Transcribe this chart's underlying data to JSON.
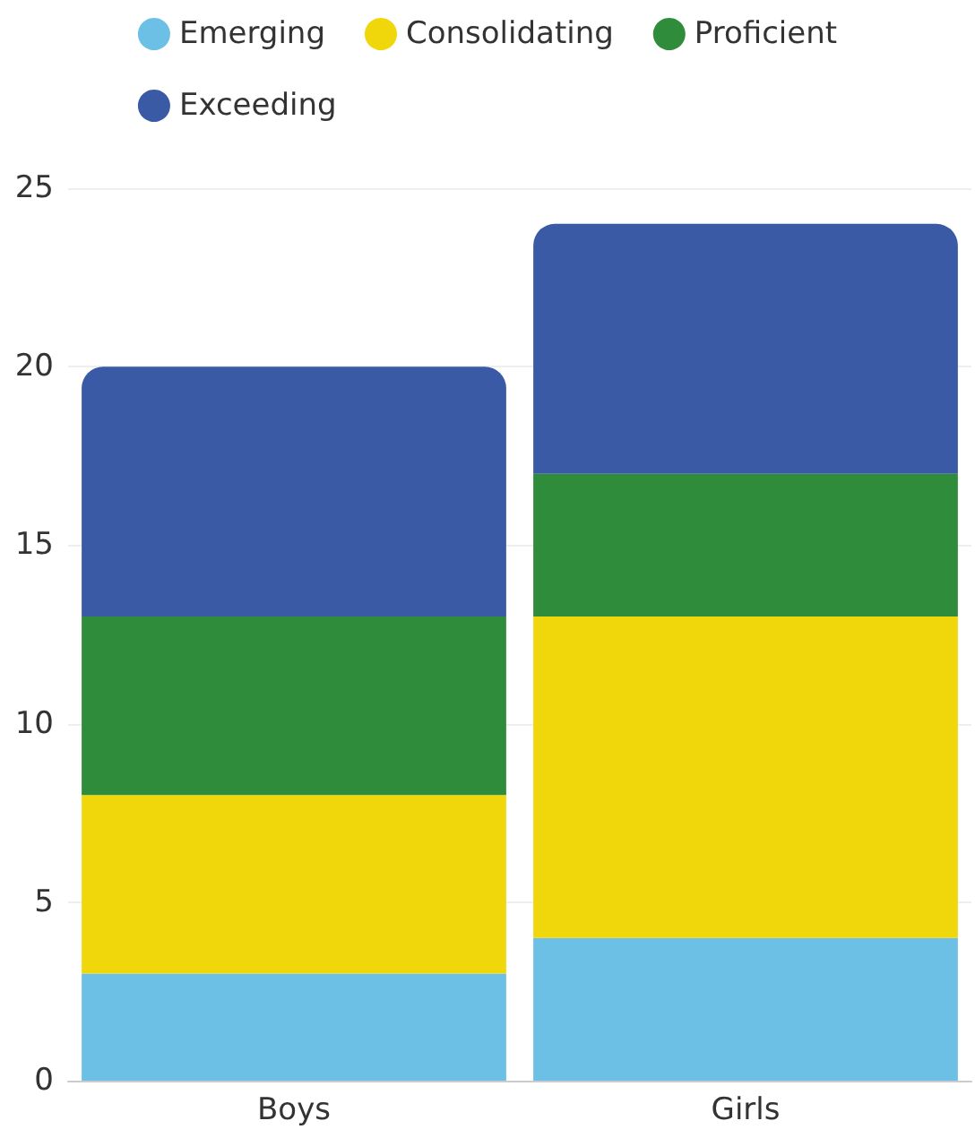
{
  "chart_data": {
    "type": "bar",
    "stacked": true,
    "categories": [
      "Boys",
      "Girls"
    ],
    "series": [
      {
        "name": "Emerging",
        "color": "#6cc0e5",
        "values": [
          3,
          4
        ]
      },
      {
        "name": "Consolidating",
        "color": "#f0d70c",
        "values": [
          5,
          9
        ]
      },
      {
        "name": "Proficient",
        "color": "#2f8c3b",
        "values": [
          5,
          4
        ]
      },
      {
        "name": "Exceeding",
        "color": "#3a5aa6",
        "values": [
          7,
          7
        ]
      }
    ],
    "ylim": [
      0,
      25
    ],
    "yticks": [
      0,
      5,
      10,
      15,
      20,
      25
    ],
    "grid": "y",
    "legend": "top"
  }
}
